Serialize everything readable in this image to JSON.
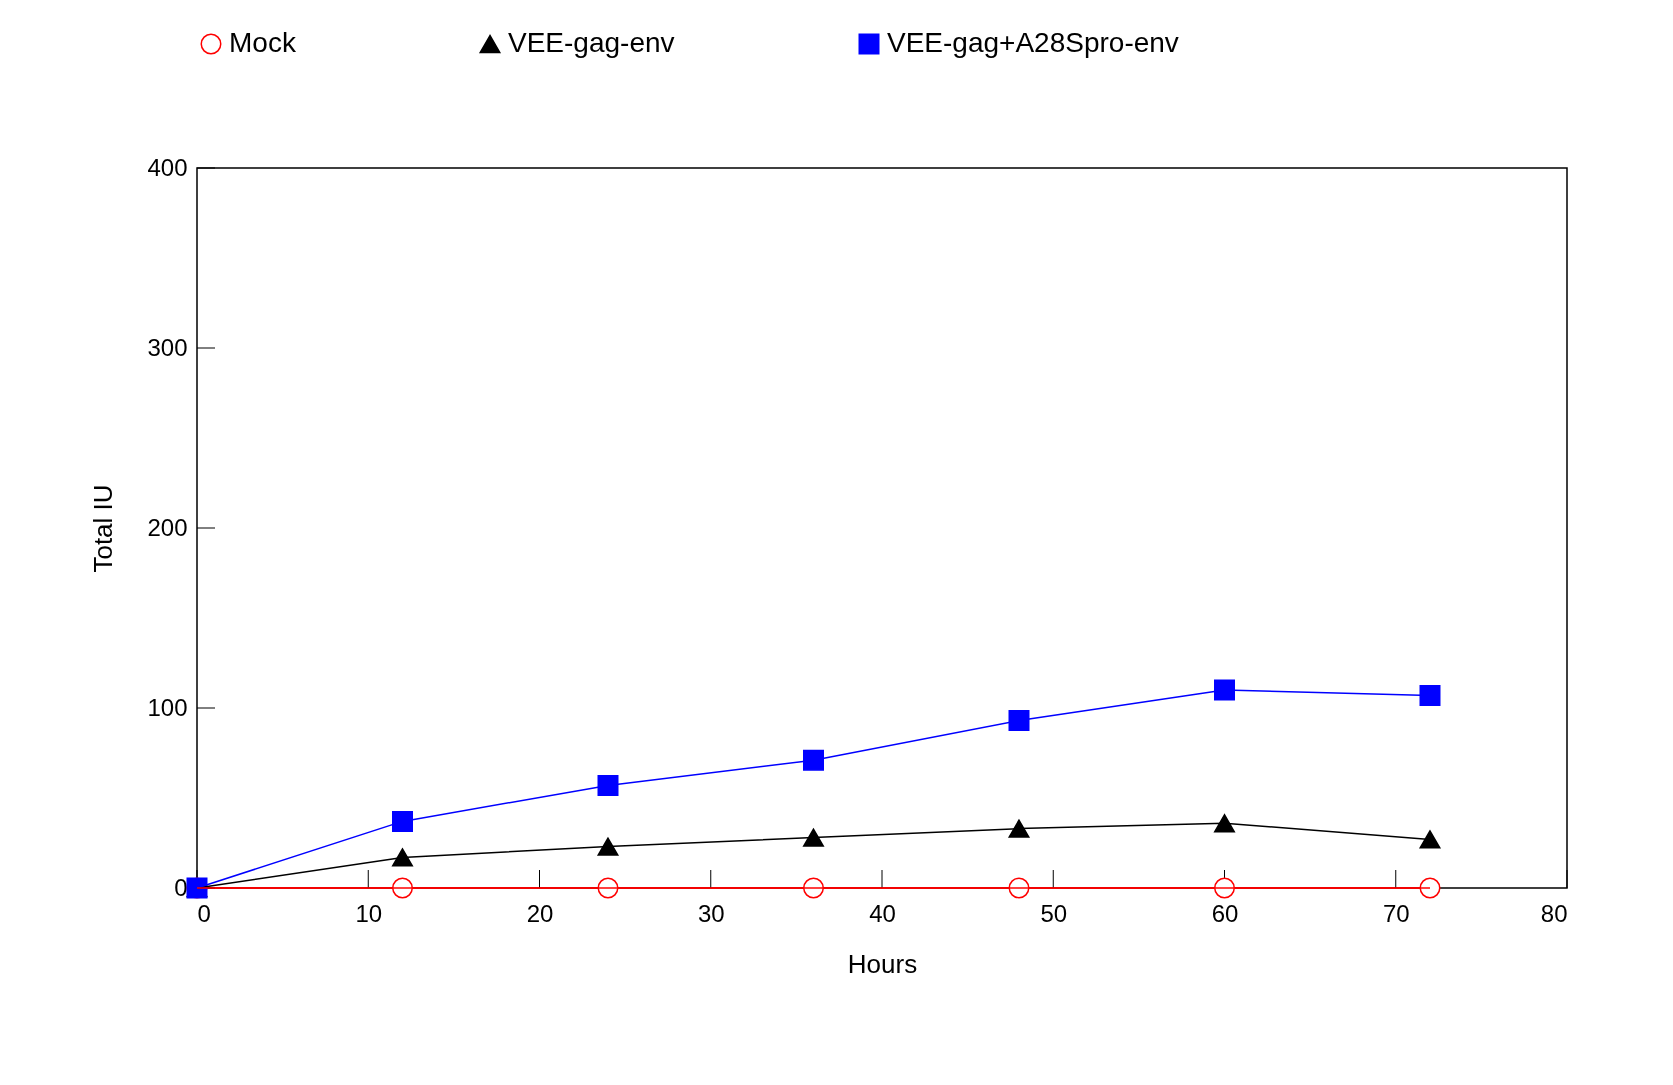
{
  "chart_data": {
    "type": "line",
    "xlabel": "Hours",
    "ylabel": "Total IU",
    "xlim": [
      0,
      80
    ],
    "xticks": [
      0,
      10,
      20,
      30,
      40,
      50,
      60,
      70,
      80
    ],
    "ylim": [
      0,
      400
    ],
    "yticks": [
      0,
      100,
      200,
      300,
      400
    ],
    "x": [
      0,
      12,
      24,
      36,
      48,
      60,
      72
    ],
    "series": [
      {
        "name": "Mock",
        "color": "#ff0000",
        "marker": "circle",
        "values": [
          0,
          0,
          0,
          0,
          0,
          0,
          0
        ]
      },
      {
        "name": "VEE-gag-env",
        "color": "#000000",
        "marker": "triangle",
        "values": [
          0,
          17,
          23,
          28,
          33,
          36,
          27
        ]
      },
      {
        "name": "VEE-gag+A28Spro-env",
        "color": "#0000ff",
        "marker": "square",
        "values": [
          0,
          37,
          57,
          71,
          93,
          110,
          107
        ]
      }
    ],
    "legend": "top",
    "grid": false
  }
}
